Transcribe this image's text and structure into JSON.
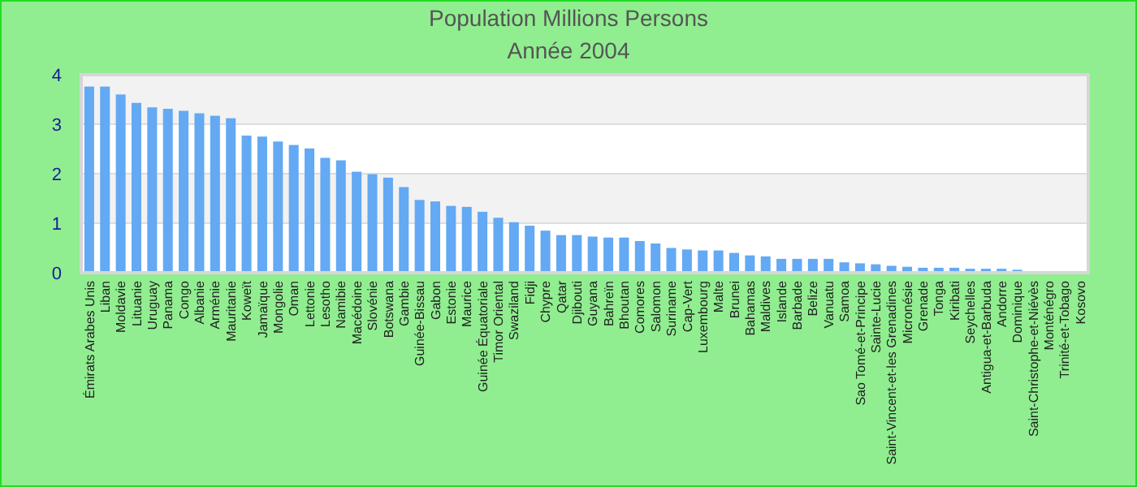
{
  "chart_data": {
    "type": "bar",
    "title": "Population Millions Persons",
    "subtitle": "Année 2004",
    "categories": [
      "Émirats Arabes Unis",
      "Liban",
      "Moldavie",
      "Lituanie",
      "Uruguay",
      "Panama",
      "Congo",
      "Albanie",
      "Arménie",
      "Mauritanie",
      "Koweït",
      "Jamaïque",
      "Mongolie",
      "Oman",
      "Lettonie",
      "Lesotho",
      "Namibie",
      "Macédoine",
      "Slovénie",
      "Botswana",
      "Gambie",
      "Guinée-Bissau",
      "Gabon",
      "Estonie",
      "Maurice",
      "Guinée Équatoriale",
      "Timor Oriental",
      "Swaziland",
      "Fidji",
      "Chypre",
      "Qatar",
      "Djibouti",
      "Guyana",
      "Bahreïn",
      "Bhoutan",
      "Comores",
      "Salomon",
      "Suriname",
      "Cap-Vert",
      "Luxembourg",
      "Malte",
      "Brunei",
      "Bahamas",
      "Maldives",
      "Islande",
      "Barbade",
      "Belize",
      "Vanuatu",
      "Samoa",
      "Sao Tomé-et-Principe",
      "Sainte-Lucie",
      "Saint-Vincent-et-les Grenadines",
      "Micronésie",
      "Grenade",
      "Tonga",
      "Kiribati",
      "Seychelles",
      "Antigua-et-Barbuda",
      "Andorre",
      "Dominique",
      "Saint-Christophe-et-Niévès",
      "Monténégro",
      "Trinité-et-Tobago",
      "Kosovo"
    ],
    "values": [
      3.76,
      3.76,
      3.6,
      3.43,
      3.34,
      3.31,
      3.27,
      3.22,
      3.17,
      3.12,
      2.77,
      2.75,
      2.65,
      2.58,
      2.51,
      2.32,
      2.27,
      2.04,
      1.99,
      1.92,
      1.73,
      1.47,
      1.44,
      1.35,
      1.33,
      1.23,
      1.11,
      1.02,
      0.95,
      0.85,
      0.76,
      0.76,
      0.73,
      0.71,
      0.71,
      0.64,
      0.59,
      0.5,
      0.47,
      0.45,
      0.45,
      0.4,
      0.35,
      0.33,
      0.28,
      0.28,
      0.28,
      0.28,
      0.21,
      0.19,
      0.17,
      0.14,
      0.12,
      0.1,
      0.1,
      0.1,
      0.08,
      0.08,
      0.08,
      0.06,
      null,
      null,
      null,
      null
    ],
    "color": "#63a9f4",
    "ylim": [
      0,
      4
    ],
    "yticks": [
      0,
      1,
      2,
      3,
      4
    ],
    "grid": "y"
  }
}
